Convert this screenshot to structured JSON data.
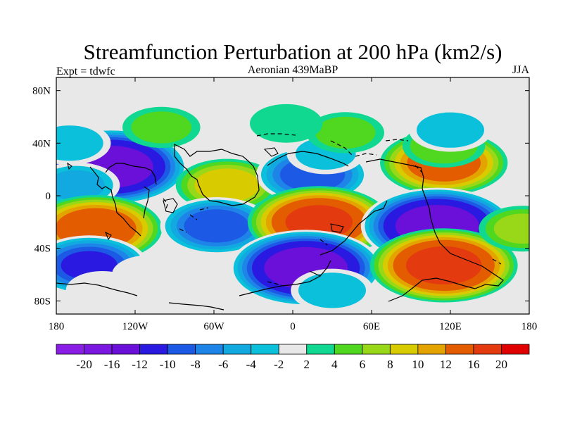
{
  "chart_data": {
    "type": "heatmap",
    "title": "Streamfunction Perturbation at 200 hPa (km2/s)",
    "left_label": "Expt = tdwfc",
    "center_label": "Aeronian 439MaBP",
    "right_label": "JJA",
    "xlim": [
      -180,
      180
    ],
    "ylim": [
      -90,
      90
    ],
    "x_ticks": [
      {
        "value": -180,
        "label": "180"
      },
      {
        "value": -120,
        "label": "120W"
      },
      {
        "value": -60,
        "label": "60W"
      },
      {
        "value": 0,
        "label": "0"
      },
      {
        "value": 60,
        "label": "60E"
      },
      {
        "value": 120,
        "label": "120E"
      },
      {
        "value": 180,
        "label": "180"
      }
    ],
    "y_ticks": [
      {
        "value": 80,
        "label": "80N"
      },
      {
        "value": 40,
        "label": "40N"
      },
      {
        "value": 0,
        "label": "0"
      },
      {
        "value": -40,
        "label": "40S"
      },
      {
        "value": -80,
        "label": "80S"
      }
    ],
    "levels": [
      -20,
      -16,
      -12,
      -10,
      -8,
      -6,
      -4,
      -2,
      2,
      4,
      6,
      8,
      10,
      12,
      16,
      20
    ],
    "level_labels": [
      "-20",
      "-16",
      "-12",
      "-10",
      "-8",
      "-6",
      "-4",
      "-2",
      "2",
      "4",
      "6",
      "8",
      "10",
      "12",
      "16",
      "20"
    ],
    "colors": [
      "#8a1ee6",
      "#7a17e0",
      "#6a10d8",
      "#2a19e0",
      "#1c5ae6",
      "#1e84e8",
      "#12a8e0",
      "#0ac0da",
      "#e8e8e8",
      "#10d890",
      "#50d820",
      "#98d818",
      "#d8cc00",
      "#e4a400",
      "#e45c00",
      "#e43a10",
      "#e00000"
    ],
    "background_color": "#e8e8e8",
    "anomaly_centers": [
      {
        "lon": -138,
        "lat": 22,
        "value": -19
      },
      {
        "lon": -165,
        "lat": 8,
        "value": -6
      },
      {
        "lon": -150,
        "lat": -25,
        "value": 15
      },
      {
        "lon": -155,
        "lat": -53,
        "value": -12
      },
      {
        "lon": -145,
        "lat": -72,
        "value": -3
      },
      {
        "lon": -50,
        "lat": 8,
        "value": 9
      },
      {
        "lon": -58,
        "lat": -23,
        "value": -11
      },
      {
        "lon": 15,
        "lat": 16,
        "value": -11
      },
      {
        "lon": 25,
        "lat": 32,
        "value": -4
      },
      {
        "lon": 20,
        "lat": -20,
        "value": 17
      },
      {
        "lon": 10,
        "lat": -55,
        "value": -19
      },
      {
        "lon": 30,
        "lat": -72,
        "value": -5
      },
      {
        "lon": 115,
        "lat": 25,
        "value": 14
      },
      {
        "lon": 115,
        "lat": 38,
        "value": 5
      },
      {
        "lon": 120,
        "lat": 50,
        "value": -5
      },
      {
        "lon": 40,
        "lat": 48,
        "value": 4
      },
      {
        "lon": -5,
        "lat": 55,
        "value": 3
      },
      {
        "lon": 110,
        "lat": -23,
        "value": -19
      },
      {
        "lon": 115,
        "lat": -53,
        "value": 18
      },
      {
        "lon": 175,
        "lat": -25,
        "value": 6
      },
      {
        "lon": -100,
        "lat": 52,
        "value": 4
      },
      {
        "lon": -170,
        "lat": 40,
        "value": -5
      },
      {
        "lon": -110,
        "lat": -60,
        "value": -3
      }
    ]
  }
}
